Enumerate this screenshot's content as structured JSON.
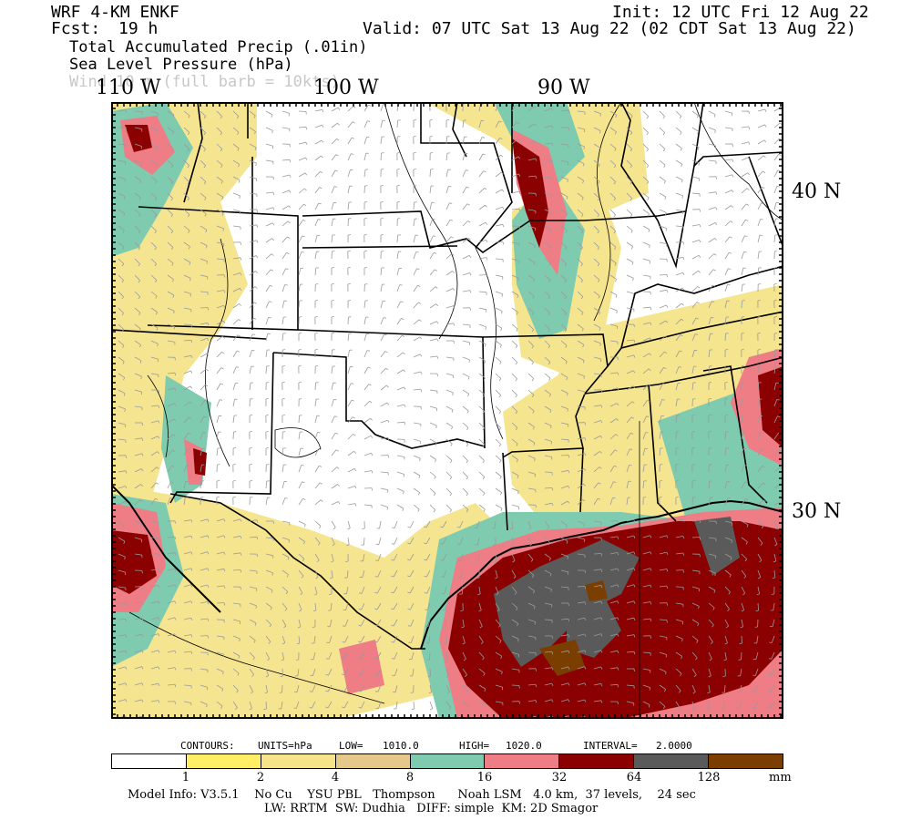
{
  "header": {
    "model": "WRF 4-KM ENKF",
    "fcst_label": "Fcst:",
    "fcst_value": "19 h",
    "init": "Init: 12 UTC Fri 12 Aug 22",
    "valid": "Valid: 07 UTC Sat 13 Aug 22 (02 CDT Sat 13 Aug 22)",
    "field1": "Total Accumulated Precip (.01in)",
    "field2": "Sea Level Pressure (hPa)",
    "field3": "Wind 10 m (full barb = 10kts)"
  },
  "longitude_labels": [
    "110 W",
    "100 W",
    "90 W"
  ],
  "latitude_labels": [
    "40 N",
    "30 N"
  ],
  "contours": {
    "label": "CONTOURS:",
    "units": "UNITS=hPa",
    "low_label": "LOW=",
    "low_value": "1010.0",
    "high_label": "HIGH=",
    "high_value": "1020.0",
    "interval_label": "INTERVAL=",
    "interval_value": "2.0000"
  },
  "legend": {
    "colors": [
      "#ffffff",
      "#ffee66",
      "#f5e48a",
      "#e4c98a",
      "#7ecbb0",
      "#ee7d86",
      "#8b0000",
      "#5a5a5a",
      "#7a3f00"
    ],
    "ticks": [
      "1",
      "2",
      "4",
      "8",
      "16",
      "32",
      "64",
      "128"
    ],
    "units": "mm"
  },
  "model_info": {
    "line1": "Model Info: V3.5.1    No Cu    YSU PBL   Thompson      Noah LSM   4.0 km,  37 levels,    24 sec",
    "line2": "LW: RRTM  SW: Dudhia   DIFF: simple  KM: 2D Smagor"
  },
  "colors": {
    "border": "#000000",
    "state_lines": "#000000",
    "wind_barbs": "#9a9a9a"
  }
}
